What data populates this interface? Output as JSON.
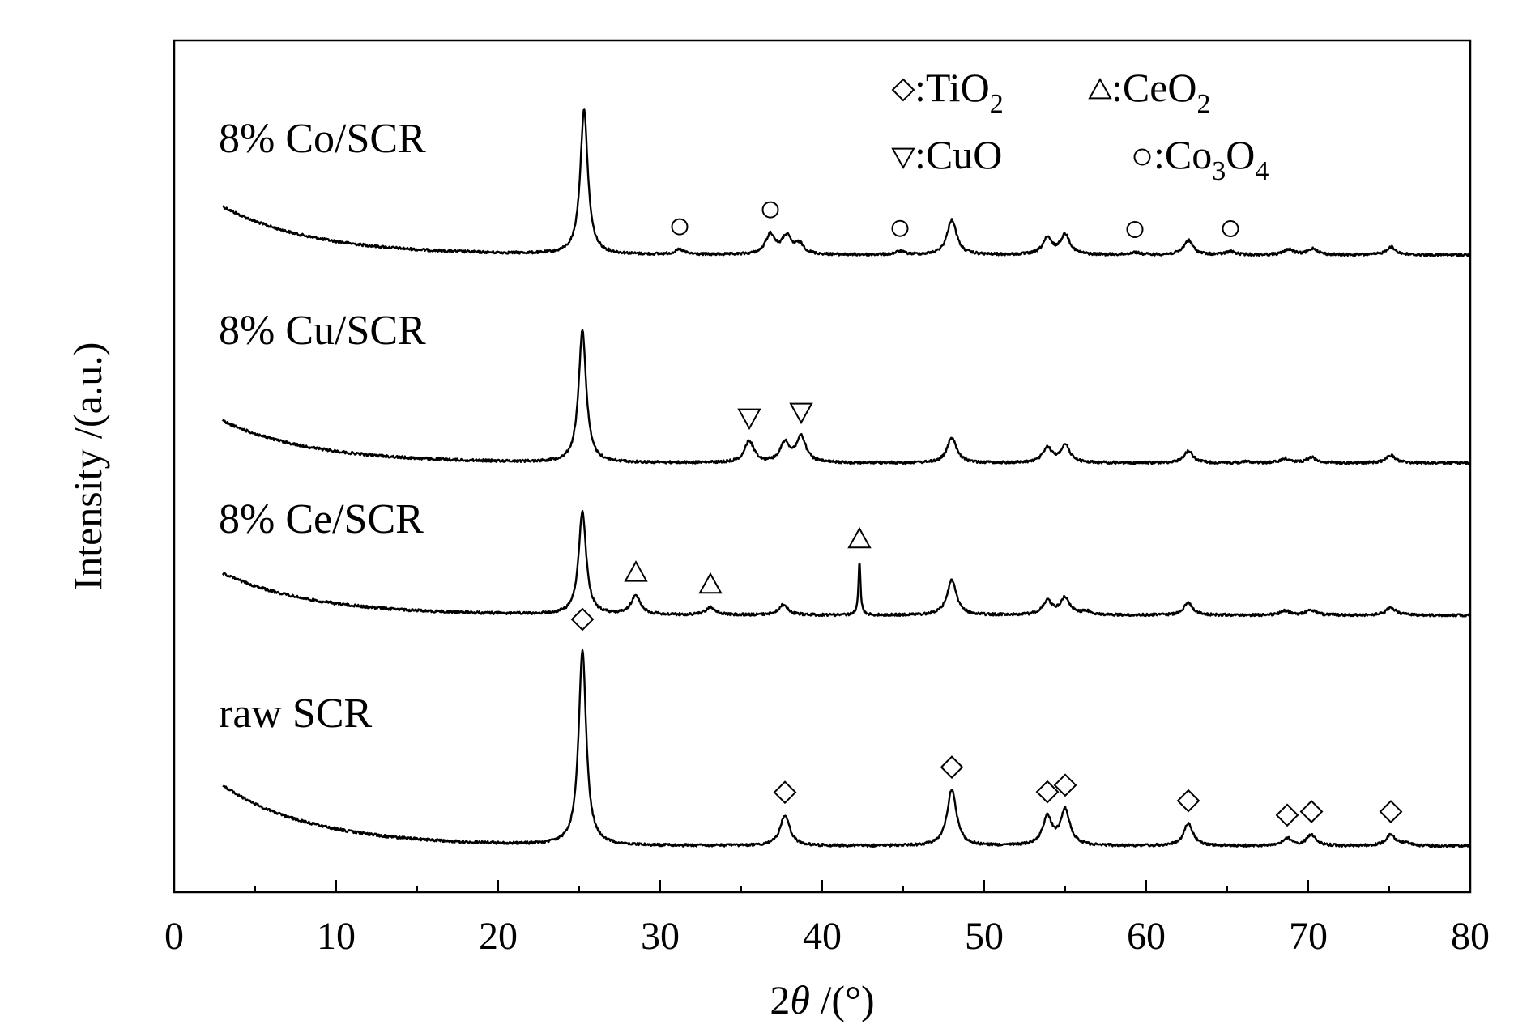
{
  "chart_data": {
    "type": "line",
    "xlabel": "2θ /(°)",
    "ylabel": "Intensity /(a.u.)",
    "xlim": [
      0,
      80
    ],
    "x_ticks": [
      "0",
      "10",
      "20",
      "30",
      "40",
      "50",
      "60",
      "70",
      "80"
    ],
    "grid": false,
    "legend": {
      "placement": "top-right",
      "entries": [
        {
          "symbol": "diamond",
          "label": ":TiO",
          "sub": "2"
        },
        {
          "symbol": "triangle-up",
          "label": ":CeO",
          "sub": "2"
        },
        {
          "symbol": "triangle-down",
          "label": ":CuO",
          "sub": ""
        },
        {
          "symbol": "circle",
          "label": ":Co",
          "sub": "3",
          "label2": "O",
          "sub2": "4"
        }
      ]
    },
    "series": [
      {
        "name": "8% Co/SCR",
        "baseline": 3,
        "peaks": [
          [
            25.3,
            18
          ],
          [
            31.2,
            0.6
          ],
          [
            36.8,
            2.5
          ],
          [
            37.8,
            2.2
          ],
          [
            38.6,
            1.2
          ],
          [
            44.8,
            0.4
          ],
          [
            48.0,
            4.4
          ],
          [
            53.9,
            2.0
          ],
          [
            55.0,
            2.5
          ],
          [
            59.3,
            0.3
          ],
          [
            62.6,
            1.8
          ],
          [
            65.2,
            0.4
          ],
          [
            68.8,
            0.7
          ],
          [
            70.3,
            0.8
          ],
          [
            75.1,
            1.0
          ]
        ],
        "markers": [
          {
            "symbol": "circle",
            "x": 31.2
          },
          {
            "symbol": "circle",
            "x": 36.8
          },
          {
            "symbol": "circle",
            "x": 44.8
          },
          {
            "symbol": "circle",
            "x": 59.3
          },
          {
            "symbol": "circle",
            "x": 65.2
          }
        ]
      },
      {
        "name": "8% Cu/SCR",
        "baseline": 2,
        "peaks": [
          [
            25.2,
            19
          ],
          [
            35.5,
            3.1
          ],
          [
            37.7,
            2.8
          ],
          [
            38.7,
            3.7
          ],
          [
            48.0,
            3.6
          ],
          [
            53.9,
            2.1
          ],
          [
            55.0,
            2.5
          ],
          [
            62.6,
            1.7
          ],
          [
            66.3,
            0.2
          ],
          [
            68.6,
            0.6
          ],
          [
            70.2,
            0.8
          ],
          [
            75.1,
            1.1
          ]
        ],
        "markers": [
          {
            "symbol": "triangle-down",
            "x": 35.5
          },
          {
            "symbol": "triangle-down",
            "x": 38.7
          }
        ]
      },
      {
        "name": "8% Ce/SCR",
        "baseline": 1,
        "peaks": [
          [
            25.2,
            12
          ],
          [
            28.5,
            2.2
          ],
          [
            33.1,
            0.9
          ],
          [
            37.6,
            1.2
          ],
          [
            42.3,
            6.2
          ],
          [
            48.0,
            4.1
          ],
          [
            53.9,
            1.6
          ],
          [
            55.0,
            2.0
          ],
          [
            56.3,
            0.4
          ],
          [
            62.6,
            1.4
          ],
          [
            68.6,
            0.5
          ],
          [
            70.2,
            0.6
          ],
          [
            75.1,
            0.9
          ]
        ],
        "markers": [
          {
            "symbol": "triangle-up",
            "x": 28.5
          },
          {
            "symbol": "triangle-up",
            "x": 33.1
          },
          {
            "symbol": "triangle-up",
            "x": 42.3
          }
        ]
      },
      {
        "name": "raw SCR",
        "baseline": 0,
        "peaks": [
          [
            25.2,
            21
          ],
          [
            37.7,
            3.3
          ],
          [
            48.0,
            6.0
          ],
          [
            53.9,
            3.0
          ],
          [
            55.0,
            3.8
          ],
          [
            62.6,
            2.4
          ],
          [
            68.7,
            0.8
          ],
          [
            70.2,
            1.2
          ],
          [
            75.1,
            1.2
          ],
          [
            76.0,
            0.3
          ]
        ],
        "markers": [
          {
            "symbol": "diamond",
            "x": 25.2
          },
          {
            "symbol": "diamond",
            "x": 37.7
          },
          {
            "symbol": "diamond",
            "x": 48.0
          },
          {
            "symbol": "diamond",
            "x": 53.9
          },
          {
            "symbol": "diamond",
            "x": 55.0
          },
          {
            "symbol": "diamond",
            "x": 62.6
          },
          {
            "symbol": "diamond",
            "x": 68.7
          },
          {
            "symbol": "diamond",
            "x": 70.2
          },
          {
            "symbol": "diamond",
            "x": 75.1
          }
        ]
      }
    ]
  }
}
